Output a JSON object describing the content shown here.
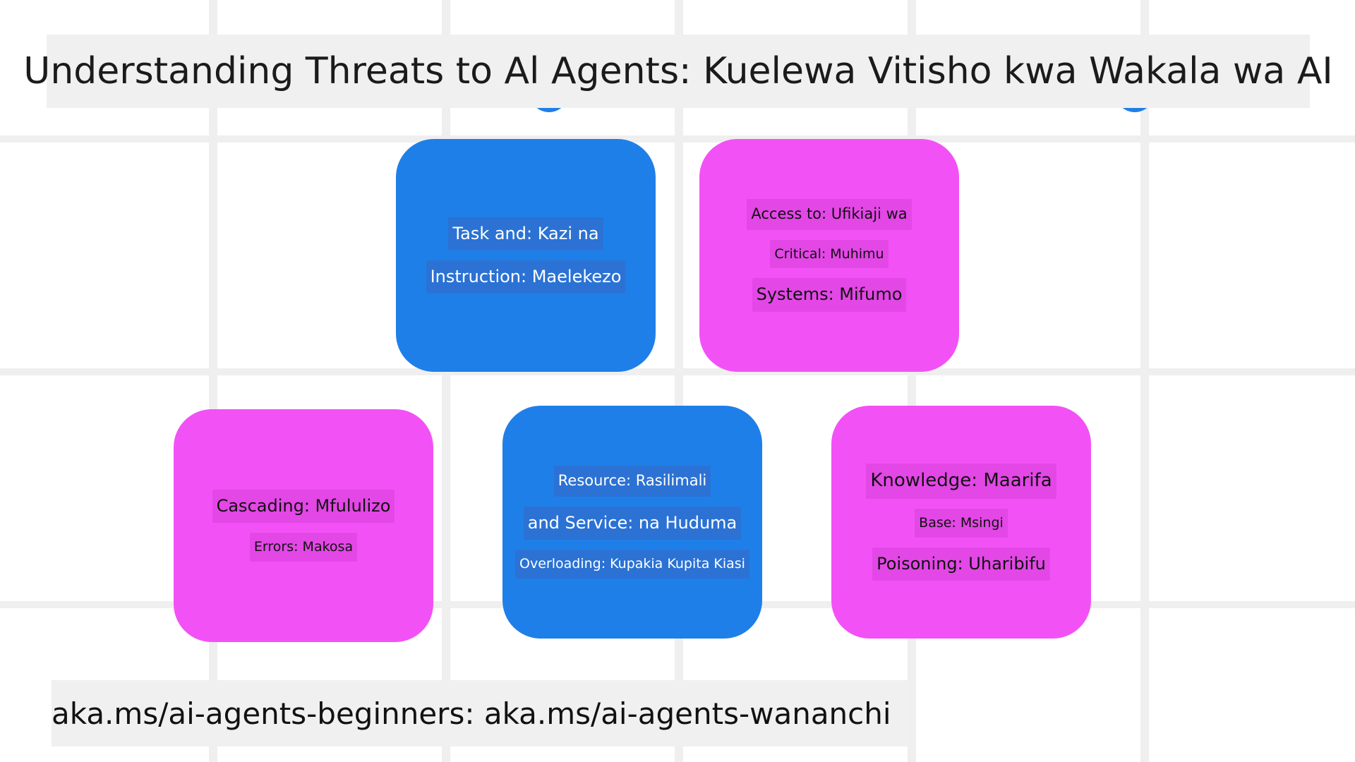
{
  "title": "Understanding Threats to Al Agents: Kuelewa Vitisho kwa Wakala wa AI",
  "cards": [
    {
      "id": "task-and-instruction",
      "color": "#1f7fe8",
      "lines": [
        "Task and: Kazi na",
        "Instruction: Maelekezo"
      ]
    },
    {
      "id": "access-to-critical-systems",
      "color": "#f252f5",
      "lines": [
        "Access to: Ufikiaji wa",
        "Critical: Muhimu",
        "Systems: Mifumo"
      ]
    },
    {
      "id": "cascading-errors",
      "color": "#f252f5",
      "lines": [
        "Cascading: Mfululizo",
        "Errors: Makosa"
      ]
    },
    {
      "id": "resource-and-service-overloading",
      "color": "#1f7fe8",
      "lines": [
        "Resource: Rasilimali",
        "and Service: na Huduma",
        "Overloading: Kupakia Kupita Kiasi"
      ]
    },
    {
      "id": "knowledge-base-poisoning",
      "color": "#f252f5",
      "lines": [
        "Knowledge: Maarifa",
        "Base: Msingi",
        "Poisoning: Uharibifu"
      ]
    }
  ],
  "footer": "aka.ms/ai-agents-beginners: aka.ms/ai-agents-wananchi",
  "colors": {
    "blue": "#1f7fe8",
    "magenta": "#f252f5",
    "band": "#f0f0f0",
    "grid": "#efefef"
  }
}
